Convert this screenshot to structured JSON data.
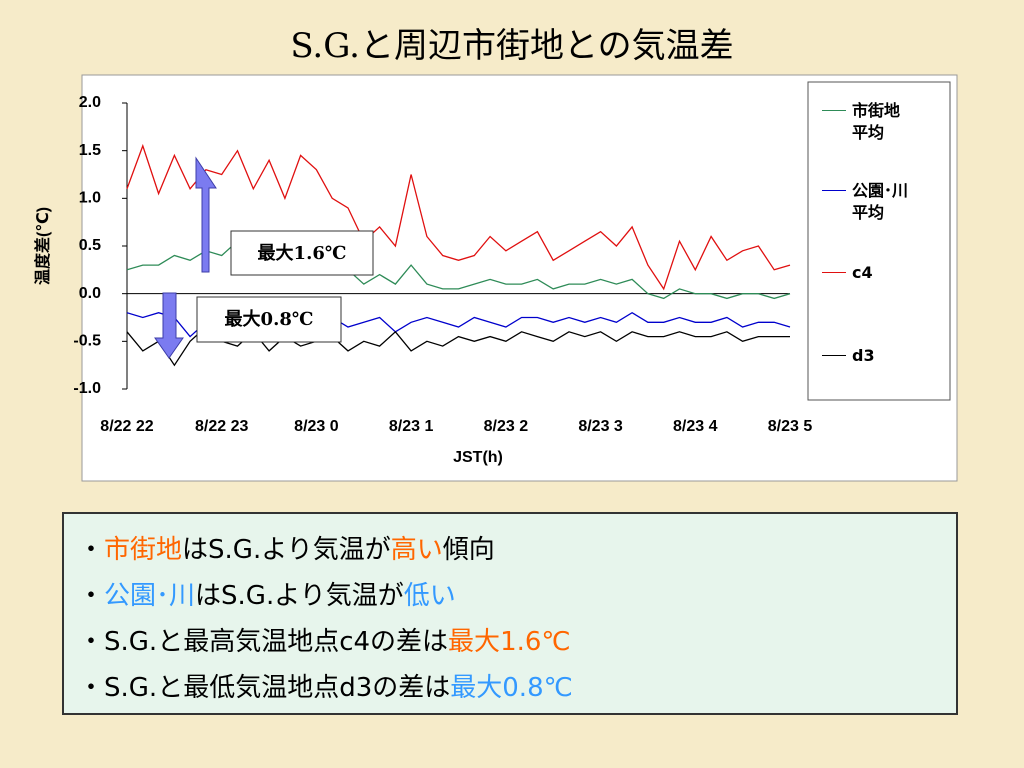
{
  "title": "S.G.と周辺市街地との気温差",
  "chart_data": {
    "type": "line",
    "ylabel": "温度差(℃)",
    "xlabel": "JST(h)",
    "categories": [
      "8/22 22",
      null,
      null,
      null,
      null,
      null,
      "8/22 23",
      null,
      null,
      null,
      null,
      null,
      "8/23 0",
      null,
      null,
      null,
      null,
      null,
      "8/23 1",
      null,
      null,
      null,
      null,
      null,
      "8/23 2",
      null,
      null,
      null,
      null,
      null,
      "8/23 3",
      null,
      null,
      null,
      null,
      null,
      "8/23 4",
      null,
      null,
      null,
      null,
      null,
      "8/23 5"
    ],
    "ylim": [
      -1.0,
      2.0
    ],
    "yticks": [
      {
        "value": 2.0,
        "label": "2.0"
      },
      1.5,
      {
        "value": 1.0,
        "label": "1.0"
      },
      0.5,
      {
        "value": 0.0,
        "label": "0.0"
      },
      -0.5,
      {
        "value": -1.0,
        "label": "-1.0"
      }
    ],
    "series": [
      {
        "name": "市街地平均",
        "color": "#2e8b57",
        "values": [
          0.25,
          0.3,
          0.3,
          0.4,
          0.35,
          0.45,
          0.4,
          0.55,
          0.4,
          0.5,
          0.35,
          0.55,
          0.4,
          0.3,
          0.25,
          0.1,
          0.2,
          0.1,
          0.3,
          0.1,
          0.05,
          0.05,
          0.1,
          0.15,
          0.1,
          0.1,
          0.15,
          0.05,
          0.1,
          0.1,
          0.15,
          0.1,
          0.15,
          0.0,
          -0.05,
          0.05,
          0.0,
          0.0,
          -0.05,
          0.0,
          0.0,
          -0.05,
          0.0
        ]
      },
      {
        "name": "公園･川平均",
        "color": "#0000cc",
        "values": [
          -0.2,
          -0.25,
          -0.2,
          -0.25,
          -0.45,
          -0.3,
          -0.1,
          -0.2,
          -0.25,
          -0.15,
          -0.25,
          -0.2,
          -0.3,
          -0.25,
          -0.35,
          -0.3,
          -0.25,
          -0.4,
          -0.3,
          -0.25,
          -0.3,
          -0.35,
          -0.25,
          -0.3,
          -0.35,
          -0.25,
          -0.25,
          -0.3,
          -0.25,
          -0.3,
          -0.25,
          -0.3,
          -0.2,
          -0.3,
          -0.3,
          -0.25,
          -0.3,
          -0.3,
          -0.25,
          -0.35,
          -0.3,
          -0.3,
          -0.35
        ]
      },
      {
        "name": "c4",
        "color": "#e01010",
        "values": [
          1.1,
          1.55,
          1.05,
          1.45,
          1.1,
          1.3,
          1.25,
          1.5,
          1.1,
          1.4,
          1.0,
          1.45,
          1.3,
          1.0,
          0.9,
          0.55,
          0.7,
          0.5,
          1.25,
          0.6,
          0.4,
          0.35,
          0.4,
          0.6,
          0.45,
          0.55,
          0.65,
          0.35,
          0.45,
          0.55,
          0.65,
          0.5,
          0.7,
          0.3,
          0.05,
          0.55,
          0.25,
          0.6,
          0.35,
          0.45,
          0.5,
          0.25,
          0.3
        ]
      },
      {
        "name": "d3",
        "color": "#000000",
        "values": [
          -0.4,
          -0.6,
          -0.5,
          -0.75,
          -0.5,
          -0.35,
          -0.5,
          -0.55,
          -0.4,
          -0.6,
          -0.45,
          -0.55,
          -0.5,
          -0.45,
          -0.6,
          -0.5,
          -0.55,
          -0.4,
          -0.6,
          -0.5,
          -0.55,
          -0.45,
          -0.5,
          -0.45,
          -0.5,
          -0.4,
          -0.45,
          -0.5,
          -0.4,
          -0.45,
          -0.4,
          -0.5,
          -0.4,
          -0.45,
          -0.45,
          -0.4,
          -0.45,
          -0.45,
          -0.4,
          -0.5,
          -0.45,
          -0.45,
          -0.45
        ]
      }
    ],
    "annotations": [
      "最大1.6℃",
      "最大0.8℃"
    ]
  },
  "bullets": [
    [
      {
        "text": "・"
      },
      {
        "text": "市街地",
        "color": "#ff6600"
      },
      {
        "text": "はS.G.より気温が"
      },
      {
        "text": "高い",
        "color": "#ff6600"
      },
      {
        "text": "傾向"
      }
    ],
    [
      {
        "text": "・"
      },
      {
        "text": "公園･川",
        "color": "#3399ff"
      },
      {
        "text": "はS.G.より気温が"
      },
      {
        "text": "低い",
        "color": "#3399ff"
      }
    ],
    [
      {
        "text": "・"
      },
      {
        "text": "S.G.と最高気温地点c4の差は"
      },
      {
        "text": "最大",
        "color": "#ff6600"
      },
      {
        "text": "1.6℃",
        "color": "#ff6600"
      }
    ],
    [
      {
        "text": "・"
      },
      {
        "text": "S.G.と最低気温地点d3の差は"
      },
      {
        "text": "最大",
        "color": "#3399ff"
      },
      {
        "text": "0.8℃",
        "color": "#3399ff"
      }
    ]
  ]
}
